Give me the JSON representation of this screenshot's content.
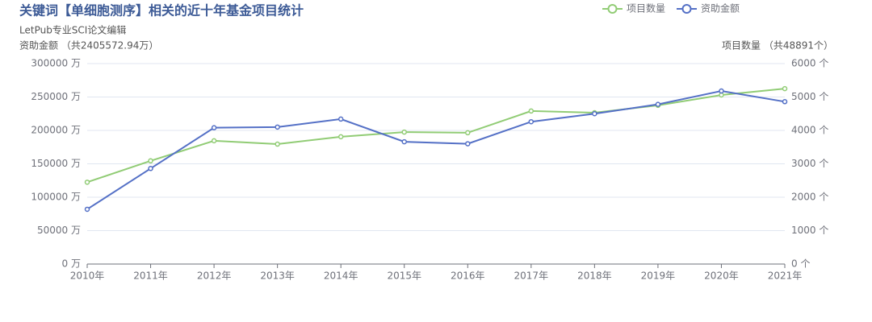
{
  "chart_data": {
    "type": "line",
    "title": "关键词【单细胞测序】相关的近十年基金项目统计",
    "subtitle": "LetPub专业SCI论文编辑",
    "y_label": "资助金额 （共2405572.94万）",
    "y2_label": "项目数量 （共48891个）",
    "categories": [
      "2010年",
      "2011年",
      "2012年",
      "2013年",
      "2014年",
      "2015年",
      "2016年",
      "2017年",
      "2018年",
      "2019年",
      "2020年",
      "2021年"
    ],
    "series": [
      {
        "name": "项目数量",
        "color": "#91cc75",
        "axis": "y2",
        "values": [
          2450,
          3090,
          3690,
          3590,
          3810,
          3950,
          3930,
          4580,
          4530,
          4750,
          5060,
          5250
        ]
      },
      {
        "name": "资助金额",
        "color": "#5470c6",
        "axis": "y",
        "values": [
          82000,
          143000,
          204000,
          205000,
          217000,
          183000,
          180000,
          213000,
          225000,
          239000,
          259000,
          243000
        ]
      }
    ],
    "ylim": [
      0,
      300000
    ],
    "yticks": [
      {
        "value": 0,
        "label": "0 万"
      },
      {
        "value": 50000,
        "label": "50000 万"
      },
      {
        "value": 100000,
        "label": "100000 万"
      },
      {
        "value": 150000,
        "label": "150000 万"
      },
      {
        "value": 200000,
        "label": "200000 万"
      },
      {
        "value": 250000,
        "label": "250000 万"
      },
      {
        "value": 300000,
        "label": "300000 万"
      }
    ],
    "y2lim": [
      0,
      6000
    ],
    "y2ticks": [
      {
        "value": 0,
        "label": "0 个"
      },
      {
        "value": 1000,
        "label": "1000 个"
      },
      {
        "value": 2000,
        "label": "2000 个"
      },
      {
        "value": 3000,
        "label": "3000 个"
      },
      {
        "value": 4000,
        "label": "4000 个"
      },
      {
        "value": 5000,
        "label": "5000 个"
      },
      {
        "value": 6000,
        "label": "6000 个"
      }
    ],
    "grid": true
  }
}
